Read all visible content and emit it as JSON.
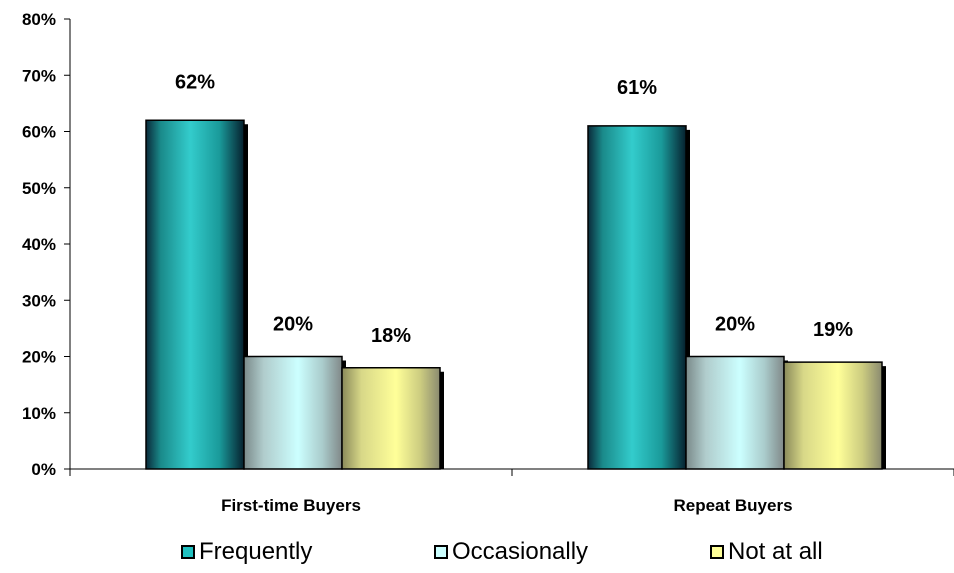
{
  "chart_data": {
    "type": "bar",
    "categories": [
      "First-time Buyers",
      "Repeat Buyers"
    ],
    "series": [
      {
        "name": "Frequently",
        "values": [
          62,
          61
        ],
        "labels": [
          "62%",
          "61%"
        ],
        "color": "#20c0c0"
      },
      {
        "name": "Occasionally",
        "values": [
          20,
          20
        ],
        "labels": [
          "20%",
          "20%"
        ],
        "color": "#ccffff"
      },
      {
        "name": "Not at all",
        "values": [
          18,
          19
        ],
        "labels": [
          "18%",
          "19%"
        ],
        "color": "#ffff99"
      }
    ],
    "y_ticks": [
      "0%",
      "10%",
      "20%",
      "30%",
      "40%",
      "50%",
      "60%",
      "70%",
      "80%"
    ],
    "ylim": [
      0,
      80
    ],
    "grid": false,
    "legend_position": "bottom"
  }
}
